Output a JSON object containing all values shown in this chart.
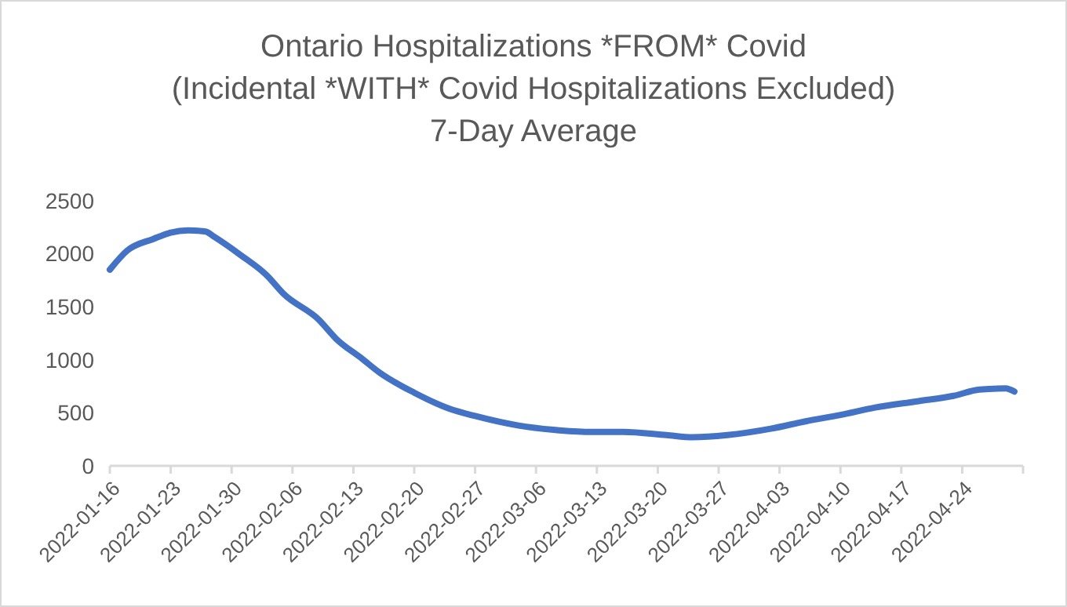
{
  "chart_data": {
    "type": "line",
    "title": "Ontario Hospitalizations *FROM* Covid\n(Incidental *WITH* Covid Hospitalizations Excluded)\n7-Day Average",
    "x": [
      "2022-01-16",
      "2022-01-18",
      "2022-01-21",
      "2022-01-23",
      "2022-01-25",
      "2022-01-27",
      "2022-01-28",
      "2022-01-31",
      "2022-02-03",
      "2022-02-05",
      "2022-02-09",
      "2022-02-11",
      "2022-02-14",
      "2022-02-16",
      "2022-02-20",
      "2022-02-24",
      "2022-02-27",
      "2022-03-04",
      "2022-03-08",
      "2022-03-12",
      "2022-03-16",
      "2022-03-21",
      "2022-03-24",
      "2022-03-28",
      "2022-04-02",
      "2022-04-06",
      "2022-04-10",
      "2022-04-14",
      "2022-04-19",
      "2022-04-23",
      "2022-04-26",
      "2022-04-29",
      "2022-04-30"
    ],
    "series": [
      {
        "color": "#4472c4",
        "values": [
          1850,
          2030,
          2140,
          2200,
          2220,
          2210,
          2160,
          1990,
          1800,
          1620,
          1380,
          1200,
          1010,
          880,
          690,
          540,
          470,
          380,
          340,
          320,
          320,
          290,
          270,
          290,
          350,
          420,
          480,
          550,
          610,
          660,
          720,
          730,
          700
        ]
      }
    ],
    "xlim": [
      "2022-01-16",
      "2022-05-01"
    ],
    "xticks": [
      "2022-01-16",
      "2022-01-23",
      "2022-01-30",
      "2022-02-06",
      "2022-02-13",
      "2022-02-20",
      "2022-02-27",
      "2022-03-06",
      "2022-03-13",
      "2022-03-20",
      "2022-03-27",
      "2022-04-03",
      "2022-04-10",
      "2022-04-17",
      "2022-04-24"
    ],
    "ylim": [
      0,
      2500
    ],
    "yticks": [
      0,
      500,
      1000,
      1500,
      2000,
      2500
    ]
  }
}
